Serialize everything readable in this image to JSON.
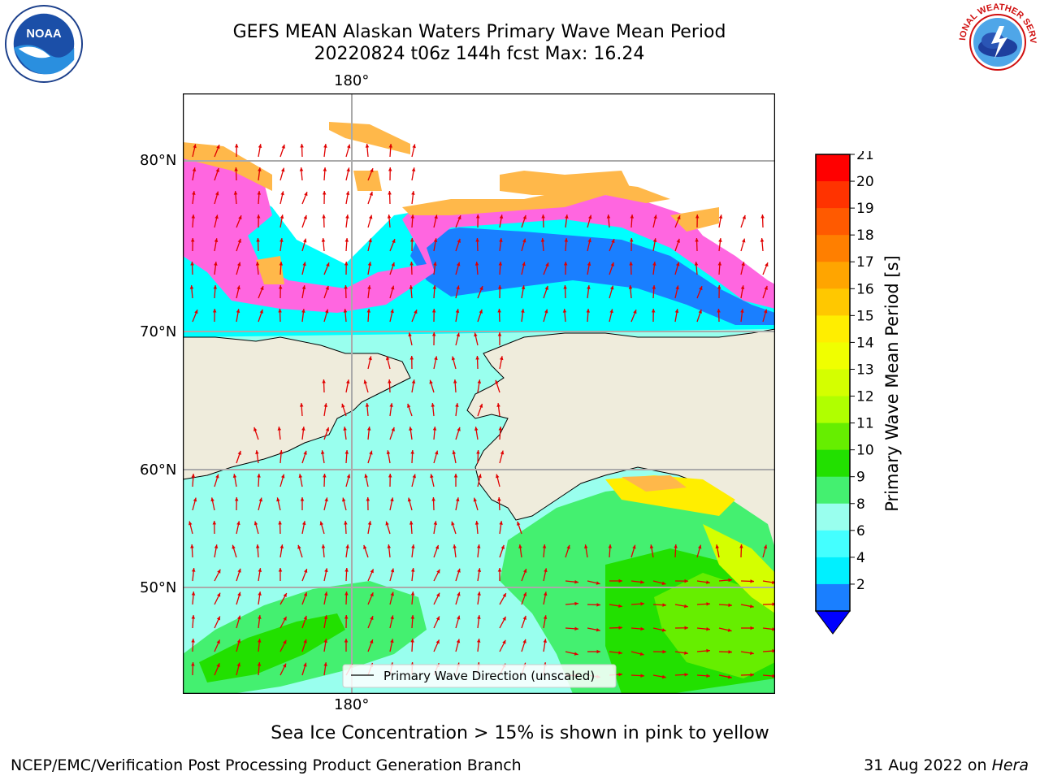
{
  "header": {
    "title_line1": "GEFS MEAN Alaskan Waters Primary Wave Mean Period",
    "title_line2": "20220824 t06z 144h fcst   Max: 16.24"
  },
  "logos": {
    "left": {
      "name": "noaa-logo",
      "text": "NOAA"
    },
    "right": {
      "name": "nws-logo",
      "text": "NATIONAL WEATHER SERVICE"
    }
  },
  "map": {
    "lon_label_top": "180°",
    "lon_label_bottom": "180°",
    "lat_labels": [
      "80°N",
      "70°N",
      "60°N",
      "50°N"
    ],
    "legend_text": "Primary Wave Direction (unscaled)",
    "colors": {
      "land": "#efecdc",
      "ice_pink": "#ff66e0",
      "ice_orange": "#ffb84a",
      "ice_yellow": "#ffd24a",
      "arrow": "#e00000"
    }
  },
  "colorbar": {
    "title": "Primary Wave Mean Period [s]",
    "ticks": [
      "21",
      "20",
      "19",
      "18",
      "17",
      "16",
      "15",
      "14",
      "13",
      "12",
      "11",
      "10",
      "9",
      "8",
      "6",
      "4",
      "2"
    ],
    "colors": [
      "#ff0000",
      "#ff3300",
      "#ff5a00",
      "#ff7f00",
      "#ffa500",
      "#ffc800",
      "#ffee00",
      "#f0ff00",
      "#d4ff00",
      "#b0ff00",
      "#66ee00",
      "#22e000",
      "#44f070",
      "#99ffee",
      "#44ffff",
      "#00f0ff",
      "#1a7fff"
    ],
    "under_color": "#0000ff"
  },
  "note": "Sea Ice Concentration > 15% is shown in pink to yellow",
  "footer": {
    "left": "NCEP/EMC/Verification Post Processing Product Generation Branch",
    "right_date": "31 Aug 2022 on ",
    "right_host": "Hera"
  }
}
